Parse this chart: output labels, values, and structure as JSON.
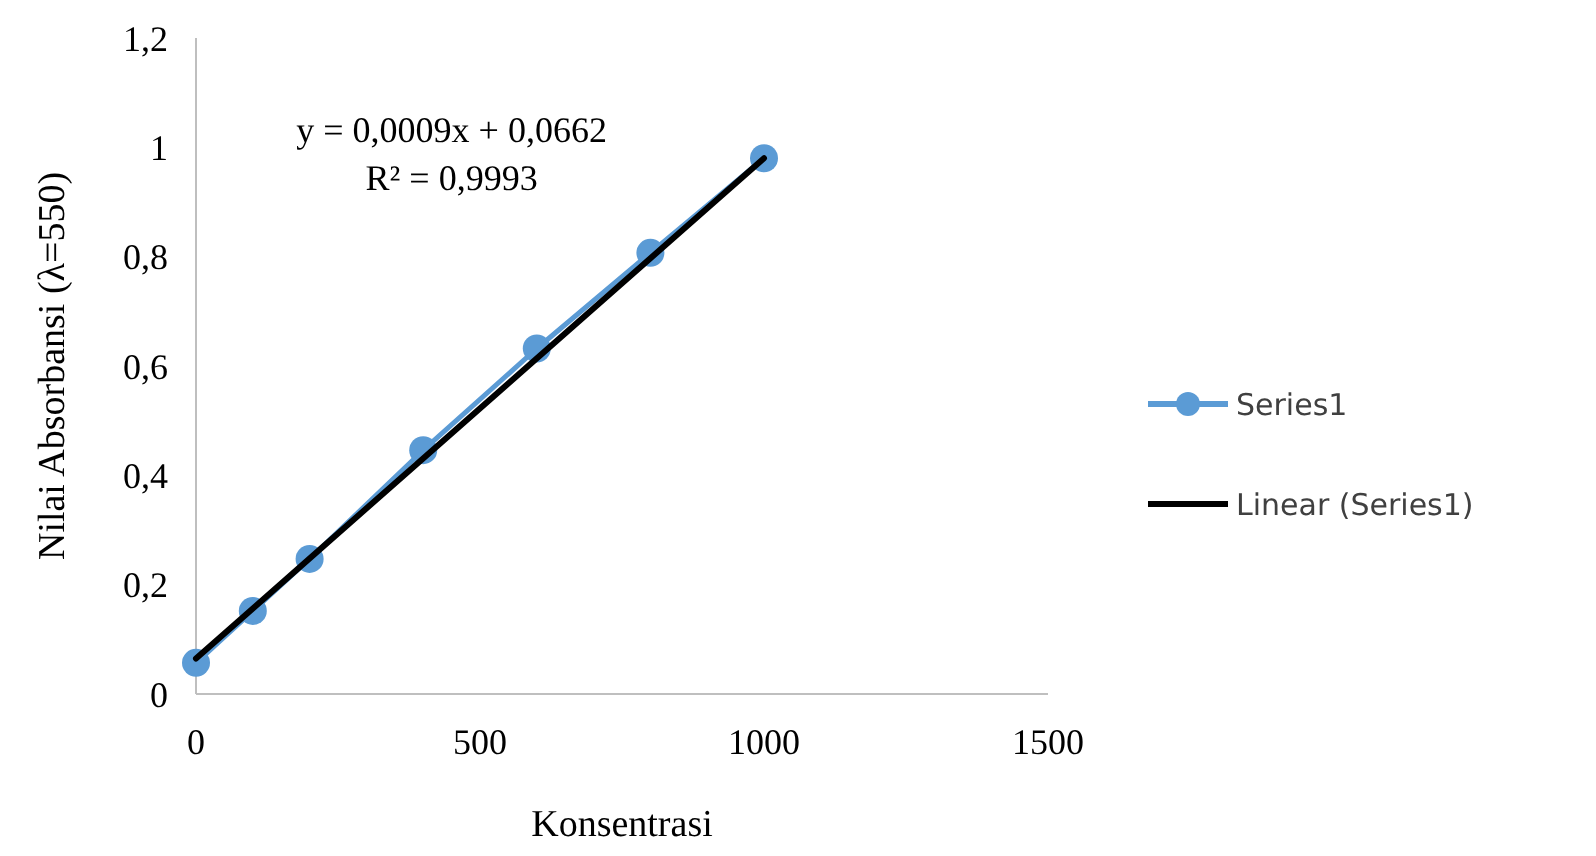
{
  "chart_data": {
    "type": "line",
    "xlabel": "Konsentrasi",
    "ylabel": "Nilai Absorbansi (λ=550)",
    "x": [
      0,
      100,
      200,
      400,
      600,
      800,
      1000
    ],
    "series": [
      {
        "name": "Series1",
        "color": "#5b9bd5",
        "marker": "circle",
        "values": [
          0.057,
          0.152,
          0.247,
          0.446,
          0.632,
          0.807,
          0.98
        ]
      },
      {
        "name": "Linear (Series1)",
        "color": "#000000",
        "marker": "none",
        "x": [
          0,
          1000
        ],
        "values": [
          0.065,
          0.98
        ]
      }
    ],
    "xlim": [
      0,
      1500
    ],
    "xticks": [
      0,
      500,
      1000,
      1500
    ],
    "ylim": [
      0,
      1.2
    ],
    "yticks": [
      0,
      {
        "value": 0.2,
        "label": "0,2"
      },
      {
        "value": 0.4,
        "label": "0,4"
      },
      {
        "value": 0.6,
        "label": "0,6"
      },
      {
        "value": 0.8,
        "label": "0,8"
      },
      1,
      {
        "value": 1.2,
        "label": "1,2"
      }
    ],
    "annotations": [
      "y = 0,0009x + 0,0662",
      "R² = 0,9993"
    ],
    "grid": false,
    "legend": "right"
  }
}
